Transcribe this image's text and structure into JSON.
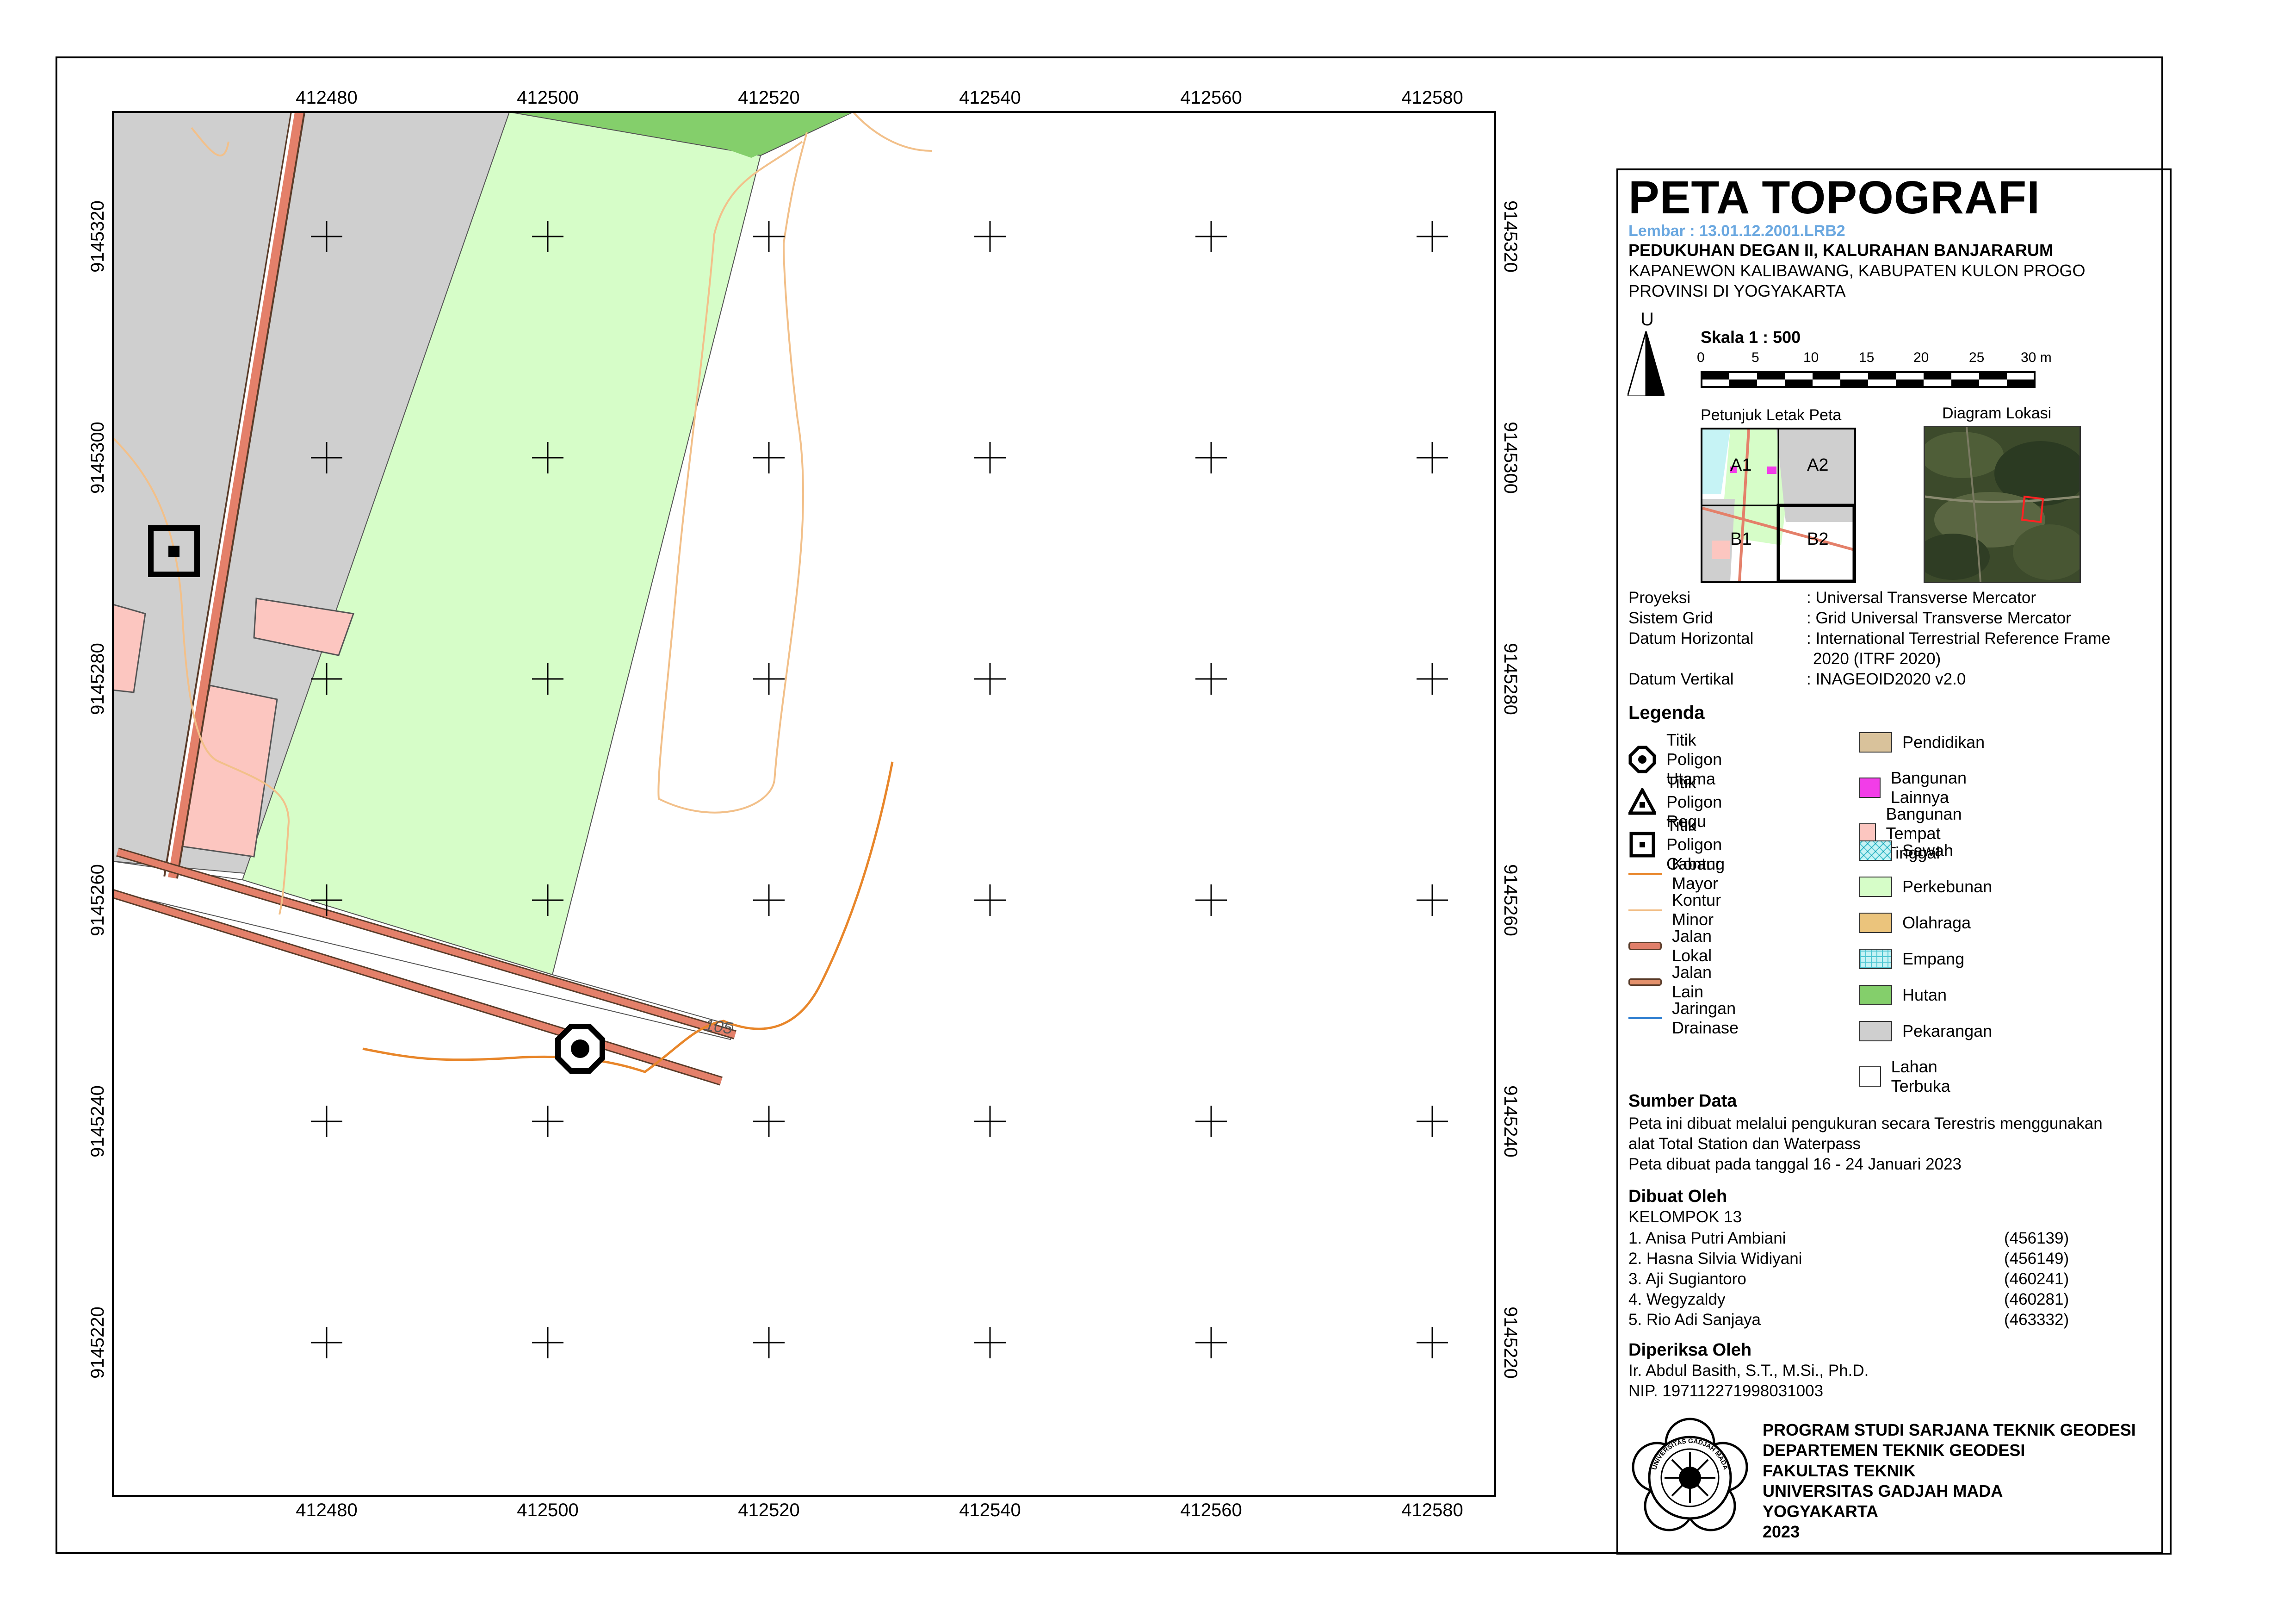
{
  "map": {
    "x_ticks": [
      "412480",
      "412500",
      "412520",
      "412540",
      "412560",
      "412580"
    ],
    "y_ticks": [
      "9145320",
      "9145300",
      "9145280",
      "9145260",
      "9145240",
      "9145220"
    ],
    "contour_label": "105"
  },
  "panel": {
    "title": "PETA TOPOGRAFI",
    "sheet_id": "Lembar : 13.01.12.2001.LRB2",
    "location_bold": "PEDUKUHAN DEGAN II, KALURAHAN BANJARARUM",
    "location_line2": "KAPANEWON KALIBAWANG, KABUPATEN KULON PROGO",
    "location_line3": "PROVINSI DI YOGYAKARTA",
    "north_label": "U",
    "scale_label": "Skala 1 : 500",
    "scale_ticks": [
      "0",
      "5",
      "10",
      "15",
      "20",
      "25",
      "30 m"
    ],
    "index_title": "Petunjuk Letak Peta",
    "index_cells": [
      "A1",
      "A2",
      "B1",
      "B2"
    ],
    "diagram_title": "Diagram Lokasi",
    "info": [
      {
        "key": "Proyeksi",
        "value": ": Universal Transverse Mercator"
      },
      {
        "key": "Sistem Grid",
        "value": ": Grid Universal Transverse Mercator"
      },
      {
        "key": "Datum Horizontal",
        "value": ": International Terrestrial Reference Frame"
      },
      {
        "key": "",
        "value": "2020 (ITRF 2020)"
      },
      {
        "key": "Datum Vertikal",
        "value": ": INAGEOID2020 v2.0"
      }
    ],
    "legend_title": "Legenda",
    "legend_left": [
      {
        "label": "Titik Poligon Utama",
        "symbol": "octagon-point-icon"
      },
      {
        "label": "Titik Poligon Regu",
        "symbol": "triangle-point-icon"
      },
      {
        "label": "Titik Poligon Cabang",
        "symbol": "square-point-icon"
      },
      {
        "label": "Kontur Mayor",
        "symbol": "major-contour-line",
        "color": "#e8862a"
      },
      {
        "label": "Kontur Minor",
        "symbol": "minor-contour-line",
        "color": "#f2c08a"
      },
      {
        "label": "Jalan Lokal",
        "symbol": "local-road-line",
        "color": "#e07f6a"
      },
      {
        "label": "Jalan Lain",
        "symbol": "other-road-line",
        "color": "#e4916c"
      },
      {
        "label": "Jaringan Drainase",
        "symbol": "drainage-line",
        "color": "#2f7fd1"
      }
    ],
    "legend_right": [
      {
        "label": "Pendidikan",
        "color": "#d9c29b"
      },
      {
        "label": "Bangunan Lainnya",
        "color": "#f23de8"
      },
      {
        "label": "Bangunan Tempat Tinggal",
        "color": "#fcc6c0"
      },
      {
        "label": "Sawah",
        "color": "#c6f3f5",
        "pattern": "cross-hatch"
      },
      {
        "label": "Perkebunan",
        "color": "#d6fdc8"
      },
      {
        "label": "Olahraga",
        "color": "#ebc47c"
      },
      {
        "label": "Empang",
        "color": "#c6f3f5",
        "pattern": "grid"
      },
      {
        "label": "Hutan",
        "color": "#84cf6b"
      },
      {
        "label": "Pekarangan",
        "color": "#cfcfcf"
      },
      {
        "label": "Lahan Terbuka",
        "color": "#ffffff"
      }
    ],
    "source_title": "Sumber Data",
    "source_lines": [
      "Peta ini dibuat melalui pengukuran secara Terestris menggunakan",
      "alat Total Station dan Waterpass",
      "Peta dibuat pada tanggal 16 - 24 Januari 2023"
    ],
    "made_by_title": "Dibuat Oleh",
    "group": "KELOMPOK 13",
    "members": [
      {
        "name": "1. Anisa Putri Ambiani",
        "id": "(456139)"
      },
      {
        "name": "2. Hasna Silvia Widiyani",
        "id": "(456149)"
      },
      {
        "name": "3. Aji Sugiantoro",
        "id": "(460241)"
      },
      {
        "name": "4. Wegyzaldy",
        "id": "(460281)"
      },
      {
        "name": "5. Rio Adi Sanjaya",
        "id": "(463332)"
      }
    ],
    "checked_title": "Diperiksa Oleh",
    "checker_name": "Ir. Abdul Basith, S.T., M.Si., Ph.D.",
    "checker_nip": "NIP. 197112271998031003",
    "institution": [
      "PROGRAM STUDI SARJANA TEKNIK GEODESI",
      "DEPARTEMEN TEKNIK GEODESI",
      "FAKULTAS TEKNIK",
      "UNIVERSITAS GADJAH MADA",
      "YOGYAKARTA",
      "2023"
    ],
    "seal_text": "UNIVERSITAS GADJAH MADA"
  },
  "colors": {
    "pekarangan": "#cfcfcf",
    "perkebunan": "#d6fdc8",
    "hutan": "#84cf6b",
    "bangunan": "#fcc6c0",
    "road_fill": "#e4806a",
    "contour_major": "#e8862a",
    "contour_minor": "#f2c08a",
    "sheet_label": "#6ba8e0"
  }
}
